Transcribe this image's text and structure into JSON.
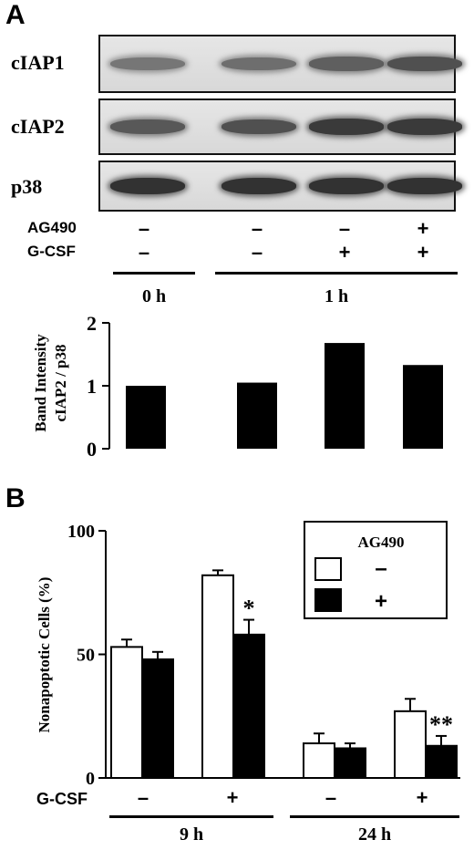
{
  "panel_a": {
    "label": "A",
    "blots": [
      {
        "name": "cIAP1",
        "bands": [
          0.55,
          0.6,
          0.7,
          0.8
        ]
      },
      {
        "name": "cIAP2",
        "bands": [
          0.75,
          0.8,
          0.95,
          0.95
        ]
      },
      {
        "name": "p38",
        "bands": [
          1.0,
          1.0,
          1.0,
          1.0
        ]
      }
    ],
    "conditions": [
      {
        "label": "AG490",
        "signs": [
          "–",
          "–",
          "–",
          "+"
        ]
      },
      {
        "label": "G-CSF",
        "signs": [
          "–",
          "–",
          "+",
          "+"
        ]
      }
    ],
    "time_groups": [
      "0 h",
      "1 h"
    ]
  },
  "panel_b": {
    "label": "B",
    "legend_title": "AG490",
    "legend_items": [
      "–",
      "+"
    ],
    "gcsf_label": "G-CSF",
    "gcsf_signs": [
      "–",
      "+",
      "–",
      "+"
    ],
    "time_groups": [
      "9 h",
      "24 h"
    ]
  },
  "chart_data": [
    {
      "type": "bar",
      "ylabel": "Band Intensity cIAP2 / p38",
      "ylabel_lines": [
        "Band Intensity",
        "cIAP2 / p38"
      ],
      "categories": [
        "0 h",
        "1 h –",
        "1 h G-CSF",
        "1 h G-CSF + AG490"
      ],
      "values": [
        1.0,
        1.05,
        1.68,
        1.33
      ],
      "ylim": [
        0,
        2
      ],
      "yticks": [
        "0",
        "1",
        "2"
      ],
      "color": "#000000"
    },
    {
      "type": "bar",
      "ylabel": "Nonapoptotic Cells (%)",
      "ylim": [
        0,
        100
      ],
      "yticks": [
        "0",
        "50",
        "100"
      ],
      "categories": [
        "9 h –",
        "9 h +",
        "24 h –",
        "24 h +"
      ],
      "series": [
        {
          "name": "–",
          "fill": "#ffffff",
          "values": [
            53,
            82,
            14,
            27
          ],
          "errors": [
            3,
            2,
            4,
            5
          ]
        },
        {
          "name": "+",
          "fill": "#000000",
          "values": [
            48,
            58,
            12,
            13
          ],
          "errors": [
            3,
            6,
            2,
            4
          ]
        }
      ],
      "annotations": [
        "",
        "*",
        "",
        "**"
      ]
    }
  ]
}
